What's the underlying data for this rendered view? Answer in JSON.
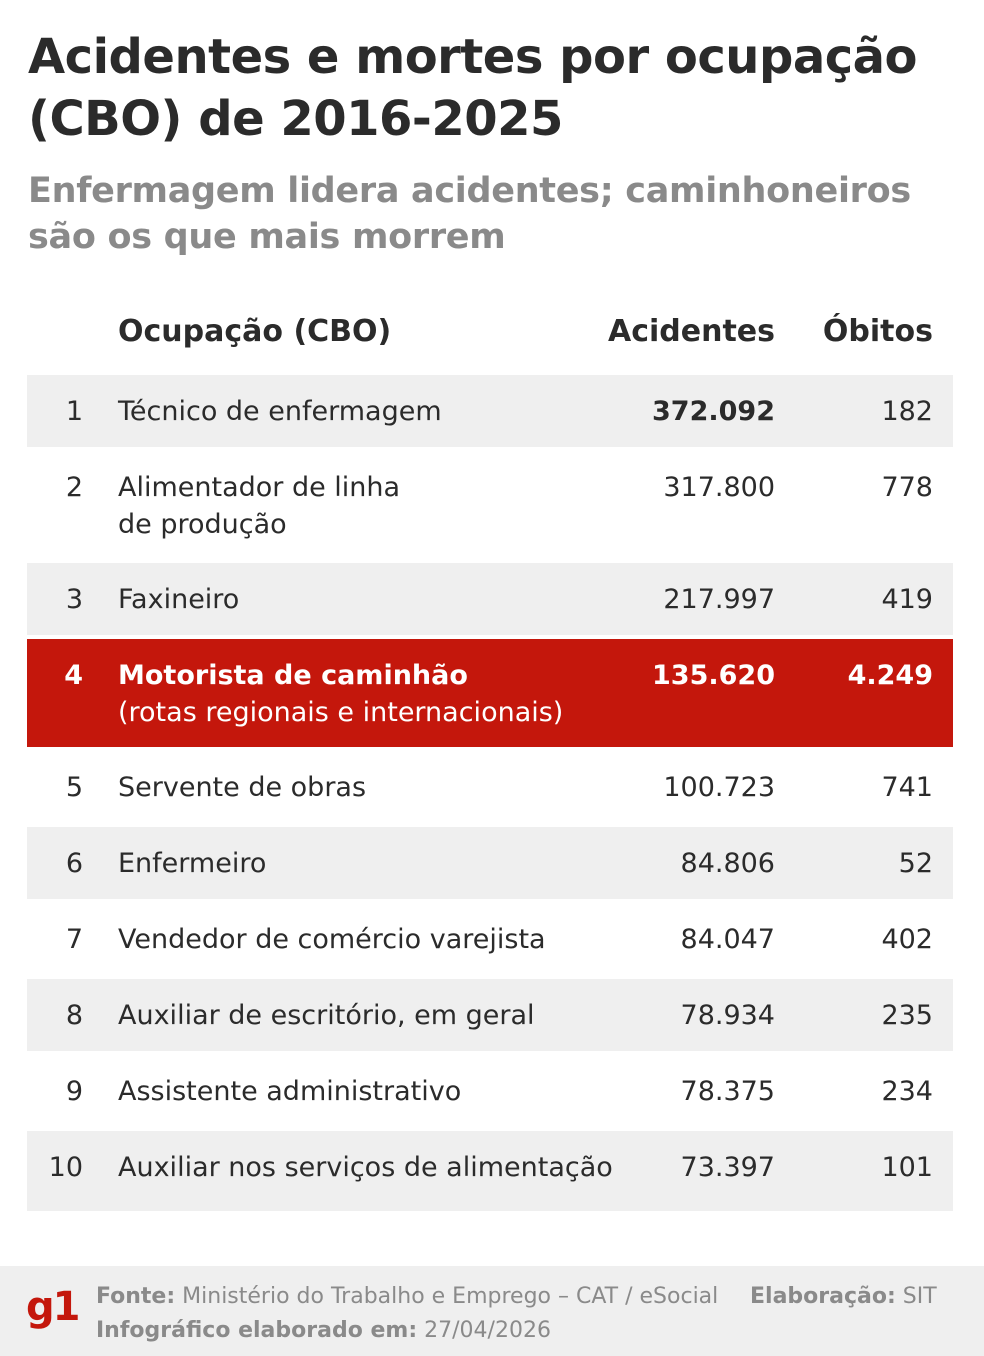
{
  "title": "Acidentes e mortes por ocupação (CBO) de 2016-2025",
  "subtitle": "Enfermagem lidera acidentes; caminhoneiros são os que mais morrem",
  "table": {
    "headers": {
      "occupation": "Ocupação (CBO)",
      "accidents": "Acidentes",
      "deaths": "Óbitos"
    },
    "rows": [
      {
        "rank": "1",
        "occupation": "Técnico de enfermagem",
        "occupation_line2": "",
        "accidents": "372.092",
        "deaths": "182"
      },
      {
        "rank": "2",
        "occupation": "Alimentador de linha",
        "occupation_line2": "de produção",
        "accidents": "317.800",
        "deaths": "778"
      },
      {
        "rank": "3",
        "occupation": "Faxineiro",
        "occupation_line2": "",
        "accidents": "217.997",
        "deaths": "419"
      },
      {
        "rank": "4",
        "occupation": "Motorista de caminhão",
        "occupation_line2": "(rotas regionais e internacionais)",
        "accidents": "135.620",
        "deaths": "4.249"
      },
      {
        "rank": "5",
        "occupation": "Servente de obras",
        "occupation_line2": "",
        "accidents": "100.723",
        "deaths": "741"
      },
      {
        "rank": "6",
        "occupation": "Enfermeiro",
        "occupation_line2": "",
        "accidents": "84.806",
        "deaths": "52"
      },
      {
        "rank": "7",
        "occupation": "Vendedor de comércio varejista",
        "occupation_line2": "",
        "accidents": "84.047",
        "deaths": "402"
      },
      {
        "rank": "8",
        "occupation": "Auxiliar de escritório, em geral",
        "occupation_line2": "",
        "accidents": "78.934",
        "deaths": "235"
      },
      {
        "rank": "9",
        "occupation": "Assistente administrativo",
        "occupation_line2": "",
        "accidents": "78.375",
        "deaths": "234"
      },
      {
        "rank": "10",
        "occupation": "Auxiliar nos serviços de alimentação",
        "occupation_line2": "",
        "accidents": "73.397",
        "deaths": "101"
      }
    ]
  },
  "footer": {
    "logo": "g1",
    "source_label": "Fonte:",
    "source_value": "Ministério do Trabalho e Emprego – CAT / eSocial",
    "credit_label": "Elaboração:",
    "credit_value": "SIT",
    "date_label": "Infográfico elaborado em:",
    "date_value": "27/04/2026"
  },
  "colors": {
    "highlight": "#c4170c",
    "row_gray": "#efefef",
    "text": "#2b2b2b",
    "muted": "#8a8a8a"
  }
}
